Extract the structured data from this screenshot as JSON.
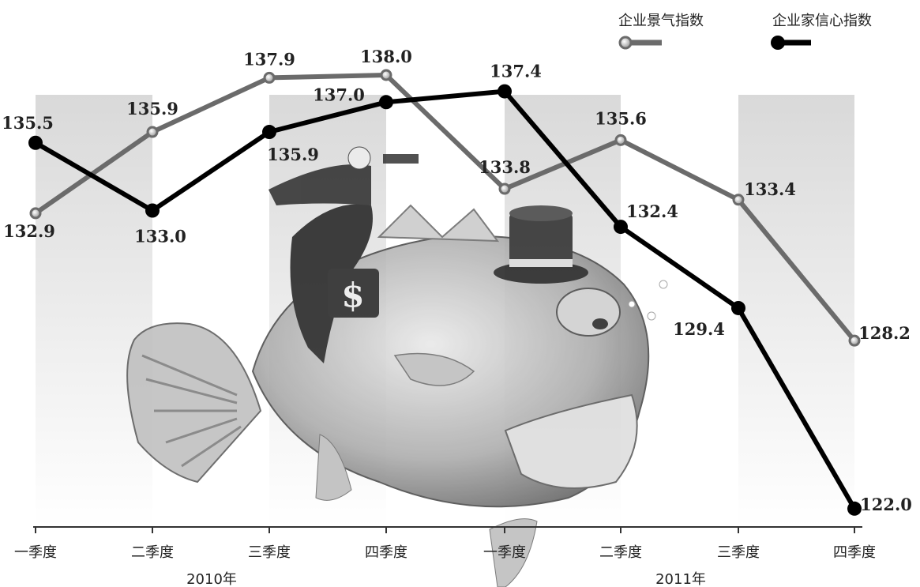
{
  "chart_data": {
    "type": "line",
    "categories": [
      "一季度",
      "二季度",
      "三季度",
      "四季度",
      "一季度",
      "二季度",
      "三季度",
      "四季度"
    ],
    "year_labels": [
      "2010年",
      "2011年"
    ],
    "series": [
      {
        "name": "企业景气指数",
        "color": "#6b6b6b",
        "values": [
          132.9,
          135.9,
          137.9,
          138.0,
          133.8,
          135.6,
          133.4,
          128.2
        ]
      },
      {
        "name": "企业家信心指数",
        "color": "#000000",
        "values": [
          135.5,
          133.0,
          135.9,
          137.0,
          137.4,
          132.4,
          129.4,
          122.0
        ]
      }
    ],
    "legend_position": "top-right",
    "xlabel": "",
    "ylabel": ""
  }
}
